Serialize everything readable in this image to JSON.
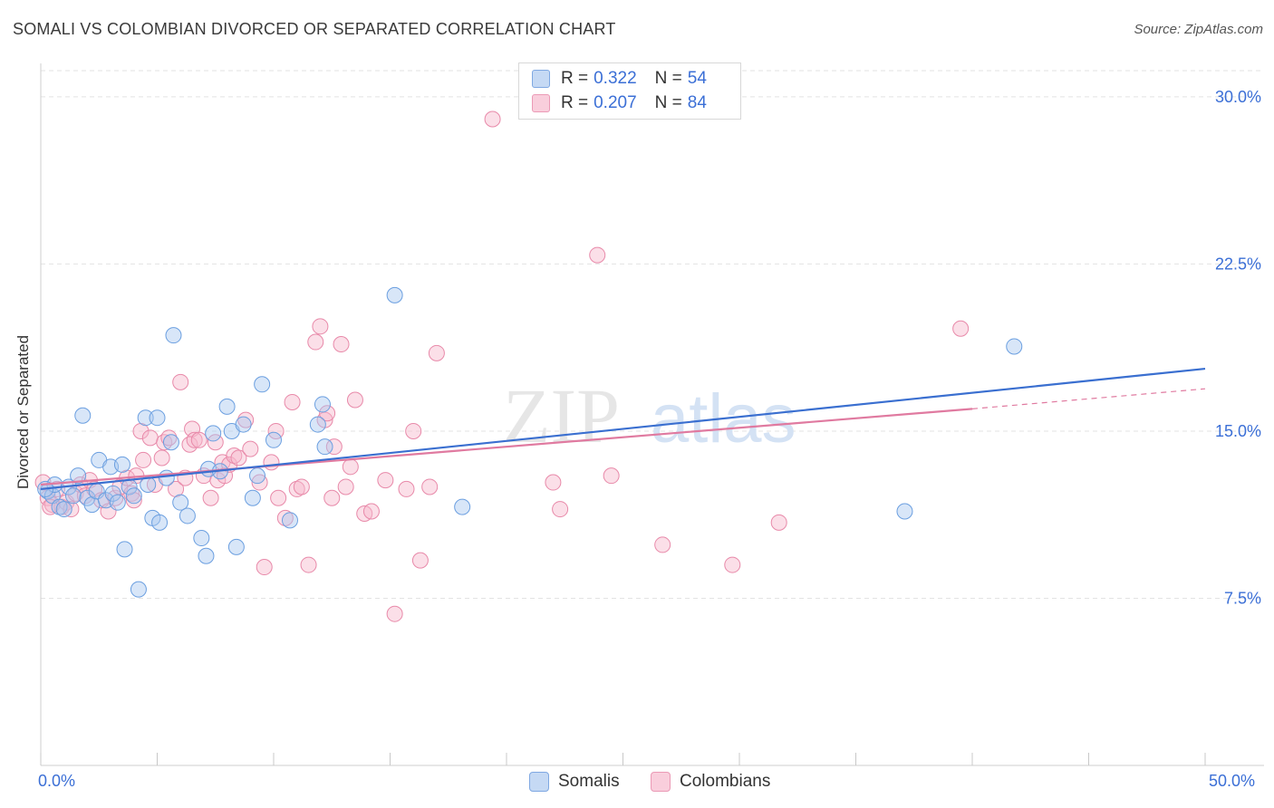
{
  "title": "SOMALI VS COLOMBIAN DIVORCED OR SEPARATED CORRELATION CHART",
  "source": "Source: ZipAtlas.com",
  "watermark": {
    "part1": "ZIP",
    "part2": "atlas"
  },
  "legend": {
    "rows": [
      {
        "r_key": "R =",
        "r_value": "0.322",
        "n_key": "N =",
        "n_value": "54",
        "color": "#a9c7f0"
      },
      {
        "r_key": "R =",
        "r_value": "0.207",
        "n_key": "N =",
        "n_value": "84",
        "color": "#f6b8cc"
      }
    ]
  },
  "bottom_legend": {
    "somalis": "Somalis",
    "colombians": "Colombians"
  },
  "colors": {
    "somali_fill": "#a9c7f0",
    "somali_stroke": "#6b9fe0",
    "somali_line": "#3a6fd0",
    "colombian_fill": "#f6b8cc",
    "colombian_stroke": "#e889a9",
    "colombian_line": "#e07aa0",
    "tick_label": "#3b6fd6"
  },
  "chart_data": {
    "type": "scatter",
    "xlabel": "",
    "ylabel": "Divorced or Separated",
    "xlim": [
      0,
      50
    ],
    "ylim": [
      0,
      31.5
    ],
    "x_tick_labels": [
      "0.0%",
      "50.0%"
    ],
    "y_ticks": [
      7.5,
      15.0,
      22.5,
      30.0
    ],
    "y_tick_labels": [
      "7.5%",
      "15.0%",
      "22.5%",
      "30.0%"
    ],
    "grid": true,
    "legend_position": "top-center",
    "series": [
      {
        "name": "Somalis",
        "points": [
          [
            0.3,
            12.3
          ],
          [
            0.5,
            12.1
          ],
          [
            0.6,
            12.6
          ],
          [
            0.8,
            11.6
          ],
          [
            1.0,
            11.5
          ],
          [
            1.2,
            12.5
          ],
          [
            1.4,
            12.1
          ],
          [
            1.6,
            13.0
          ],
          [
            1.8,
            15.7
          ],
          [
            2.0,
            12.0
          ],
          [
            2.2,
            11.7
          ],
          [
            2.4,
            12.3
          ],
          [
            2.5,
            13.7
          ],
          [
            2.8,
            11.9
          ],
          [
            3.0,
            13.4
          ],
          [
            3.1,
            12.2
          ],
          [
            3.3,
            11.8
          ],
          [
            3.5,
            13.5
          ],
          [
            3.6,
            9.7
          ],
          [
            3.8,
            12.5
          ],
          [
            4.0,
            12.1
          ],
          [
            4.2,
            7.9
          ],
          [
            4.5,
            15.6
          ],
          [
            4.6,
            12.6
          ],
          [
            4.8,
            11.1
          ],
          [
            5.0,
            15.6
          ],
          [
            5.1,
            10.9
          ],
          [
            5.4,
            12.9
          ],
          [
            5.6,
            14.5
          ],
          [
            5.7,
            19.3
          ],
          [
            6.0,
            11.8
          ],
          [
            6.3,
            11.2
          ],
          [
            6.9,
            10.2
          ],
          [
            7.1,
            9.4
          ],
          [
            7.2,
            13.3
          ],
          [
            7.4,
            14.9
          ],
          [
            7.7,
            13.2
          ],
          [
            8.0,
            16.1
          ],
          [
            8.2,
            15.0
          ],
          [
            8.4,
            9.8
          ],
          [
            8.7,
            15.3
          ],
          [
            9.1,
            12.0
          ],
          [
            9.3,
            13.0
          ],
          [
            9.5,
            17.1
          ],
          [
            10.0,
            14.6
          ],
          [
            10.7,
            11.0
          ],
          [
            11.9,
            15.3
          ],
          [
            12.1,
            16.2
          ],
          [
            12.2,
            14.3
          ],
          [
            15.2,
            21.1
          ],
          [
            18.1,
            11.6
          ],
          [
            37.1,
            11.4
          ],
          [
            41.8,
            18.8
          ],
          [
            0.2,
            12.4
          ]
        ]
      },
      {
        "name": "Colombians",
        "points": [
          [
            0.1,
            12.7
          ],
          [
            0.3,
            12.0
          ],
          [
            0.5,
            11.7
          ],
          [
            0.7,
            12.4
          ],
          [
            0.9,
            11.6
          ],
          [
            1.1,
            11.8
          ],
          [
            1.3,
            11.5
          ],
          [
            1.5,
            12.2
          ],
          [
            1.7,
            12.6
          ],
          [
            1.9,
            12.1
          ],
          [
            2.1,
            12.8
          ],
          [
            2.3,
            12.4
          ],
          [
            2.6,
            11.9
          ],
          [
            2.9,
            11.4
          ],
          [
            3.2,
            12.0
          ],
          [
            3.4,
            12.5
          ],
          [
            3.7,
            12.9
          ],
          [
            3.9,
            12.2
          ],
          [
            4.0,
            11.9
          ],
          [
            4.1,
            13.0
          ],
          [
            4.3,
            15.0
          ],
          [
            4.4,
            13.7
          ],
          [
            4.7,
            14.7
          ],
          [
            4.9,
            12.6
          ],
          [
            5.2,
            13.8
          ],
          [
            5.3,
            14.5
          ],
          [
            5.5,
            14.7
          ],
          [
            5.8,
            12.4
          ],
          [
            6.0,
            17.2
          ],
          [
            6.2,
            12.9
          ],
          [
            6.4,
            14.4
          ],
          [
            6.5,
            15.1
          ],
          [
            6.6,
            14.6
          ],
          [
            6.8,
            14.6
          ],
          [
            7.0,
            13.0
          ],
          [
            7.3,
            12.0
          ],
          [
            7.5,
            14.5
          ],
          [
            7.6,
            12.8
          ],
          [
            7.8,
            13.6
          ],
          [
            7.9,
            13.0
          ],
          [
            8.1,
            13.5
          ],
          [
            8.3,
            13.9
          ],
          [
            8.5,
            13.8
          ],
          [
            8.8,
            15.5
          ],
          [
            9.0,
            14.2
          ],
          [
            9.4,
            12.7
          ],
          [
            9.6,
            8.9
          ],
          [
            9.9,
            13.6
          ],
          [
            10.1,
            15.0
          ],
          [
            10.2,
            12.0
          ],
          [
            10.5,
            11.1
          ],
          [
            10.8,
            16.3
          ],
          [
            11.0,
            12.4
          ],
          [
            11.2,
            12.5
          ],
          [
            11.5,
            9.0
          ],
          [
            11.8,
            19.0
          ],
          [
            12.0,
            19.7
          ],
          [
            12.2,
            15.5
          ],
          [
            12.3,
            15.8
          ],
          [
            12.5,
            12.0
          ],
          [
            12.6,
            14.3
          ],
          [
            12.9,
            18.9
          ],
          [
            13.1,
            12.5
          ],
          [
            13.3,
            13.4
          ],
          [
            13.5,
            16.4
          ],
          [
            13.9,
            11.3
          ],
          [
            14.2,
            11.4
          ],
          [
            14.8,
            12.8
          ],
          [
            15.2,
            6.8
          ],
          [
            15.7,
            12.4
          ],
          [
            16.0,
            15.0
          ],
          [
            16.3,
            9.2
          ],
          [
            16.7,
            12.5
          ],
          [
            17.0,
            18.5
          ],
          [
            19.4,
            29.0
          ],
          [
            22.0,
            12.7
          ],
          [
            22.3,
            11.5
          ],
          [
            23.9,
            22.9
          ],
          [
            24.5,
            13.0
          ],
          [
            26.7,
            9.9
          ],
          [
            29.7,
            9.0
          ],
          [
            31.7,
            10.9
          ],
          [
            39.5,
            19.6
          ],
          [
            0.4,
            11.6
          ]
        ]
      }
    ],
    "trend_lines": [
      {
        "name": "Somalis",
        "x": [
          0,
          50
        ],
        "y": [
          12.4,
          17.8
        ]
      },
      {
        "name": "Colombians",
        "x": [
          0,
          40
        ],
        "y": [
          12.6,
          16.0
        ],
        "dashed_x": [
          40,
          50
        ],
        "dashed_y": [
          16.0,
          16.9
        ]
      }
    ]
  }
}
